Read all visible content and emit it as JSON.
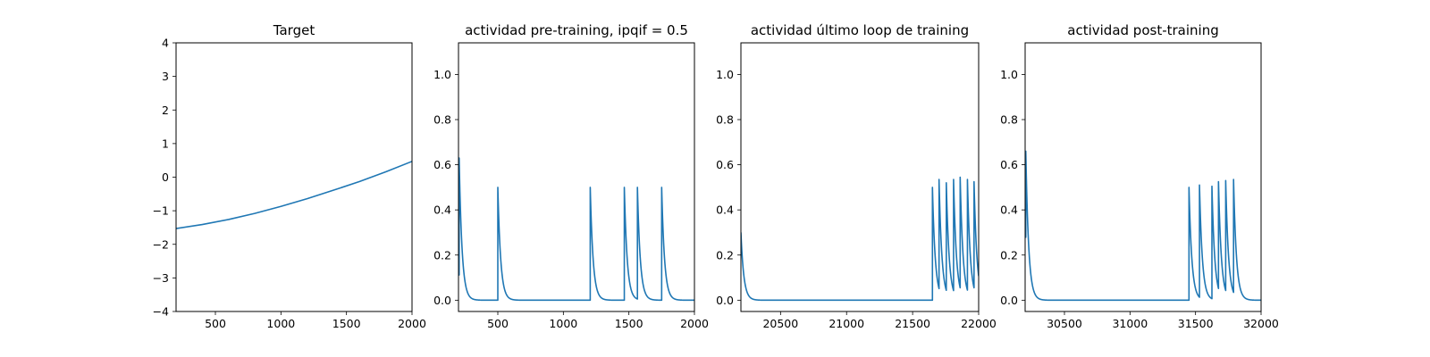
{
  "figure": {
    "background": "#ffffff",
    "line_color": "#1f77b4"
  },
  "chart_data": [
    {
      "type": "line",
      "title": "Target",
      "xlabel": "",
      "ylabel": "",
      "xlim": [
        200,
        2000
      ],
      "ylim": [
        -4,
        4
      ],
      "xticks": [
        500,
        1000,
        1500,
        2000
      ],
      "yticks": [
        -4,
        -3,
        -2,
        -1,
        0,
        1,
        2,
        3,
        4
      ],
      "ytick_labels": [
        "−4",
        "−3",
        "−2",
        "−1",
        "0",
        "1",
        "2",
        "3",
        "4"
      ],
      "series": [
        {
          "x": [
            200,
            400,
            600,
            800,
            1000,
            1200,
            1400,
            1600,
            1800,
            2000
          ],
          "y": [
            -1.53,
            -1.41,
            -1.26,
            -1.08,
            -0.87,
            -0.64,
            -0.39,
            -0.13,
            0.16,
            0.47
          ]
        }
      ]
    },
    {
      "type": "line",
      "title": "actividad pre-training, ipqif = 0.5",
      "xlabel": "",
      "ylabel": "",
      "xlim": [
        200,
        2000
      ],
      "ylim": [
        -0.05,
        1.14
      ],
      "xticks": [
        500,
        1000,
        1500,
        2000
      ],
      "yticks": [
        0.0,
        0.2,
        0.4,
        0.6,
        0.8,
        1.0
      ],
      "ytick_labels": [
        "0.0",
        "0.2",
        "0.4",
        "0.6",
        "0.8",
        "1.0"
      ],
      "start": [
        200,
        0.14
      ],
      "spikes": [
        {
          "t": 205,
          "h": 0.63,
          "tau": 22
        },
        {
          "t": 500,
          "h": 0.5,
          "tau": 22
        },
        {
          "t": 1205,
          "h": 0.5,
          "tau": 22
        },
        {
          "t": 1465,
          "h": 0.5,
          "tau": 22
        },
        {
          "t": 1565,
          "h": 0.5,
          "tau": 22
        },
        {
          "t": 1750,
          "h": 0.5,
          "tau": 22
        }
      ]
    },
    {
      "type": "line",
      "title": "actividad último loop de training",
      "xlabel": "",
      "ylabel": "",
      "xlim": [
        20200,
        22000
      ],
      "ylim": [
        -0.05,
        1.14
      ],
      "xticks": [
        20500,
        21000,
        21500,
        22000
      ],
      "yticks": [
        0.0,
        0.2,
        0.4,
        0.6,
        0.8,
        1.0
      ],
      "ytick_labels": [
        "0.0",
        "0.2",
        "0.4",
        "0.6",
        "0.8",
        "1.0"
      ],
      "start": [
        20200,
        0.3
      ],
      "spikes": [
        {
          "t": 20200,
          "h": 0.3,
          "tau": 22
        },
        {
          "t": 21650,
          "h": 0.5,
          "tau": 22
        },
        {
          "t": 21700,
          "h": 0.535,
          "tau": 22
        },
        {
          "t": 21755,
          "h": 0.52,
          "tau": 22
        },
        {
          "t": 21810,
          "h": 0.535,
          "tau": 22
        },
        {
          "t": 21860,
          "h": 0.545,
          "tau": 22
        },
        {
          "t": 21915,
          "h": 0.535,
          "tau": 22
        },
        {
          "t": 21965,
          "h": 0.525,
          "tau": 22
        }
      ]
    },
    {
      "type": "line",
      "title": "actividad post-training",
      "xlabel": "",
      "ylabel": "",
      "xlim": [
        30200,
        32000
      ],
      "ylim": [
        -0.05,
        1.14
      ],
      "xticks": [
        30500,
        31000,
        31500,
        32000
      ],
      "yticks": [
        0.0,
        0.2,
        0.4,
        0.6,
        0.8,
        1.0
      ],
      "ytick_labels": [
        "0.0",
        "0.2",
        "0.4",
        "0.6",
        "0.8",
        "1.0"
      ],
      "start": [
        30200,
        0.35
      ],
      "spikes": [
        {
          "t": 30205,
          "h": 0.66,
          "tau": 22
        },
        {
          "t": 31450,
          "h": 0.5,
          "tau": 22
        },
        {
          "t": 31530,
          "h": 0.51,
          "tau": 22
        },
        {
          "t": 31625,
          "h": 0.505,
          "tau": 22
        },
        {
          "t": 31675,
          "h": 0.525,
          "tau": 22
        },
        {
          "t": 31730,
          "h": 0.53,
          "tau": 22
        },
        {
          "t": 31790,
          "h": 0.535,
          "tau": 22
        }
      ]
    }
  ]
}
